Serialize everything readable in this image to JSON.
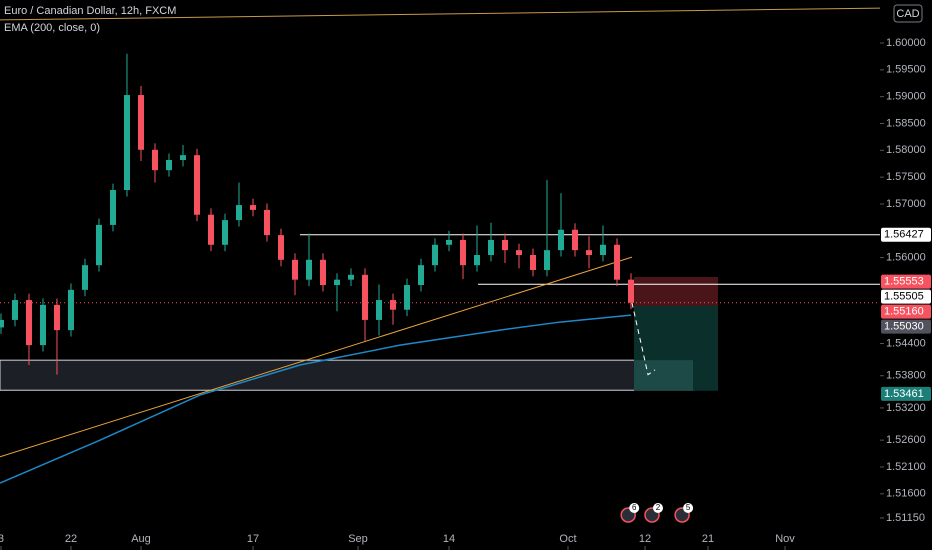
{
  "chart_data": {
    "type": "candlestick",
    "title": "Euro / Canadian Dollar, 12h, FXCM",
    "indicator": "EMA (200, close, 0)",
    "currency": "CAD",
    "up_color": "#22ab94",
    "down_color": "#f7525f",
    "x": [
      -20,
      -18,
      -16,
      -14,
      -12,
      -10,
      -8,
      -6,
      -4,
      -2,
      0,
      2,
      4,
      6,
      8,
      10,
      12,
      14,
      16,
      18,
      20,
      22,
      24,
      26,
      28,
      30,
      32,
      34,
      36,
      38,
      40,
      42,
      44,
      46,
      48,
      50,
      52,
      54,
      56,
      58,
      60,
      62,
      64,
      66,
      68,
      70
    ],
    "open": [
      1.547,
      1.5484,
      1.5521,
      1.5437,
      1.5512,
      1.5465,
      1.554,
      1.5586,
      1.5661,
      1.5726,
      1.5903,
      1.5801,
      1.5763,
      1.5782,
      1.5791,
      1.568,
      1.5624,
      1.567,
      1.5698,
      1.5689,
      1.5642,
      1.5596,
      1.5559,
      1.5596,
      1.5549,
      1.5559,
      1.5568,
      1.5484,
      1.5521,
      1.5503,
      1.5549,
      1.5586,
      1.5624,
      1.5633,
      1.5586,
      1.5605,
      1.5633,
      1.5614,
      1.5605,
      1.5577,
      1.5614,
      1.5652,
      1.5614,
      1.5605,
      1.5624,
      1.5559
    ],
    "high": [
      1.5496,
      1.5533,
      1.5533,
      1.5524,
      1.5524,
      1.5552,
      1.5598,
      1.5673,
      1.5738,
      1.598,
      1.592,
      1.5813,
      1.5794,
      1.581,
      1.5803,
      1.5692,
      1.5682,
      1.574,
      1.571,
      1.5701,
      1.5654,
      1.5608,
      1.5645,
      1.5608,
      1.5571,
      1.558,
      1.558,
      1.555,
      1.5533,
      1.5561,
      1.5598,
      1.5636,
      1.565,
      1.5645,
      1.566,
      1.5665,
      1.5645,
      1.5626,
      1.5617,
      1.5745,
      1.572,
      1.5664,
      1.564,
      1.566,
      1.5636,
      1.5571
    ],
    "low": [
      1.5458,
      1.5472,
      1.54,
      1.5425,
      1.5382,
      1.5453,
      1.5528,
      1.5574,
      1.5649,
      1.5714,
      1.578,
      1.574,
      1.5751,
      1.577,
      1.5668,
      1.5612,
      1.5612,
      1.5658,
      1.5677,
      1.563,
      1.5584,
      1.553,
      1.5547,
      1.5537,
      1.55,
      1.5547,
      1.5445,
      1.5455,
      1.5475,
      1.5491,
      1.5537,
      1.5574,
      1.5612,
      1.556,
      1.5574,
      1.5593,
      1.559,
      1.558,
      1.5565,
      1.5565,
      1.5602,
      1.5602,
      1.558,
      1.5593,
      1.5547,
      1.5504
    ],
    "close": [
      1.5484,
      1.5521,
      1.5437,
      1.5512,
      1.5465,
      1.554,
      1.5586,
      1.5661,
      1.5726,
      1.5903,
      1.5801,
      1.5763,
      1.5782,
      1.5791,
      1.568,
      1.5624,
      1.567,
      1.5698,
      1.5689,
      1.5642,
      1.5596,
      1.5559,
      1.5596,
      1.5549,
      1.5559,
      1.5568,
      1.5484,
      1.5521,
      1.5503,
      1.5549,
      1.5586,
      1.5624,
      1.5633,
      1.5586,
      1.5605,
      1.5633,
      1.5614,
      1.5605,
      1.5577,
      1.5614,
      1.5652,
      1.5614,
      1.5605,
      1.5624,
      1.5559,
      1.5516
    ],
    "ema": {
      "color": "#1e88c8",
      "x": [
        -20.14,
        -5.86,
        8.43,
        22.71,
        37,
        51.29,
        59.86,
        70
      ],
      "values": [
        1.518,
        1.526,
        1.5344,
        1.54,
        1.5437,
        1.5465,
        1.548,
        1.5493
      ]
    },
    "xlim": [
      -20.14,
      105.57
    ],
    "xticks": [
      {
        "value": -20,
        "label": "3"
      },
      {
        "value": -10,
        "label": "22"
      },
      {
        "value": 0,
        "label": "Aug"
      },
      {
        "value": 16,
        "label": "17"
      },
      {
        "value": 31,
        "label": "Sep"
      },
      {
        "value": 44,
        "label": "14"
      },
      {
        "value": 61,
        "label": "Oct"
      },
      {
        "value": 72,
        "label": "12"
      },
      {
        "value": 81,
        "label": "21"
      },
      {
        "value": 92,
        "label": "Nov"
      }
    ],
    "ylim": [
      1.50553,
      1.60801
    ],
    "yticks": [
      {
        "value": 1.6,
        "label": "1.60000"
      },
      {
        "value": 1.595,
        "label": "1.59500"
      },
      {
        "value": 1.59,
        "label": "1.59000"
      },
      {
        "value": 1.585,
        "label": "1.58500"
      },
      {
        "value": 1.58,
        "label": "1.58000"
      },
      {
        "value": 1.575,
        "label": "1.57500"
      },
      {
        "value": 1.57,
        "label": "1.57000"
      },
      {
        "value": 1.56,
        "label": "1.56000"
      },
      {
        "value": 1.544,
        "label": "1.54400"
      },
      {
        "value": 1.538,
        "label": "1.53800"
      },
      {
        "value": 1.532,
        "label": "1.53200"
      },
      {
        "value": 1.526,
        "label": "1.52600"
      },
      {
        "value": 1.521,
        "label": "1.52100"
      },
      {
        "value": 1.516,
        "label": "1.51600"
      },
      {
        "value": 1.5115,
        "label": "1.51150"
      }
    ],
    "price_labels": [
      {
        "value": 1.56427,
        "label": "1.56427",
        "color": "#ffffff"
      },
      {
        "value": 1.55553,
        "label": "1.55553",
        "color": "#f7525f"
      },
      {
        "value": 1.55505,
        "label": "1.55505",
        "color": "#ffffff"
      },
      {
        "value": 1.5516,
        "label": "1.55160",
        "color": "#f7525f"
      },
      {
        "value": 1.5503,
        "label": "1.55030",
        "color": "#50535e"
      },
      {
        "value": 1.53461,
        "label": "1.53461",
        "color": "#1b7f78"
      }
    ],
    "zones": [
      {
        "x": [
          -20.14,
          78.86
        ],
        "y": [
          1.5353,
          1.5409
        ],
        "color": "#1c1f26"
      },
      {
        "x": [
          70.43,
          82.43
        ],
        "y": [
          1.551,
          1.5564
        ],
        "color": "#4a1519"
      },
      {
        "x": [
          70.43,
          82.43
        ],
        "y": [
          1.5352,
          1.551
        ],
        "color": "#0b302c"
      },
      {
        "x": [
          70.43,
          78.86
        ],
        "y": [
          1.5353,
          1.5409
        ],
        "color": "#1d4a47"
      }
    ],
    "h_lines": [
      {
        "x": [
          22.71,
          105.57
        ],
        "y": 1.56427,
        "color": "#ffffff"
      },
      {
        "x": [
          48.14,
          105.57
        ],
        "y": 1.55505,
        "color": "#ffffff"
      }
    ],
    "trend_lines": [
      {
        "x": [
          -20.14,
          70.14
        ],
        "y": [
          1.5229,
          1.5601
        ],
        "color": "#e8a33a"
      },
      {
        "x": [
          -20.14,
          105.57
        ],
        "y": [
          1.6043,
          1.6065
        ],
        "color": "#c89a4a"
      },
      {
        "x": [
          70.14,
          72.43,
          73.43
        ],
        "y": [
          1.5516,
          1.5382,
          1.5391
        ],
        "color": "#ffffff"
      }
    ],
    "events": [
      {
        "x": 69.6,
        "label": "6"
      },
      {
        "x": 73,
        "label": "2"
      },
      {
        "x": 77.3,
        "label": "5"
      }
    ]
  }
}
